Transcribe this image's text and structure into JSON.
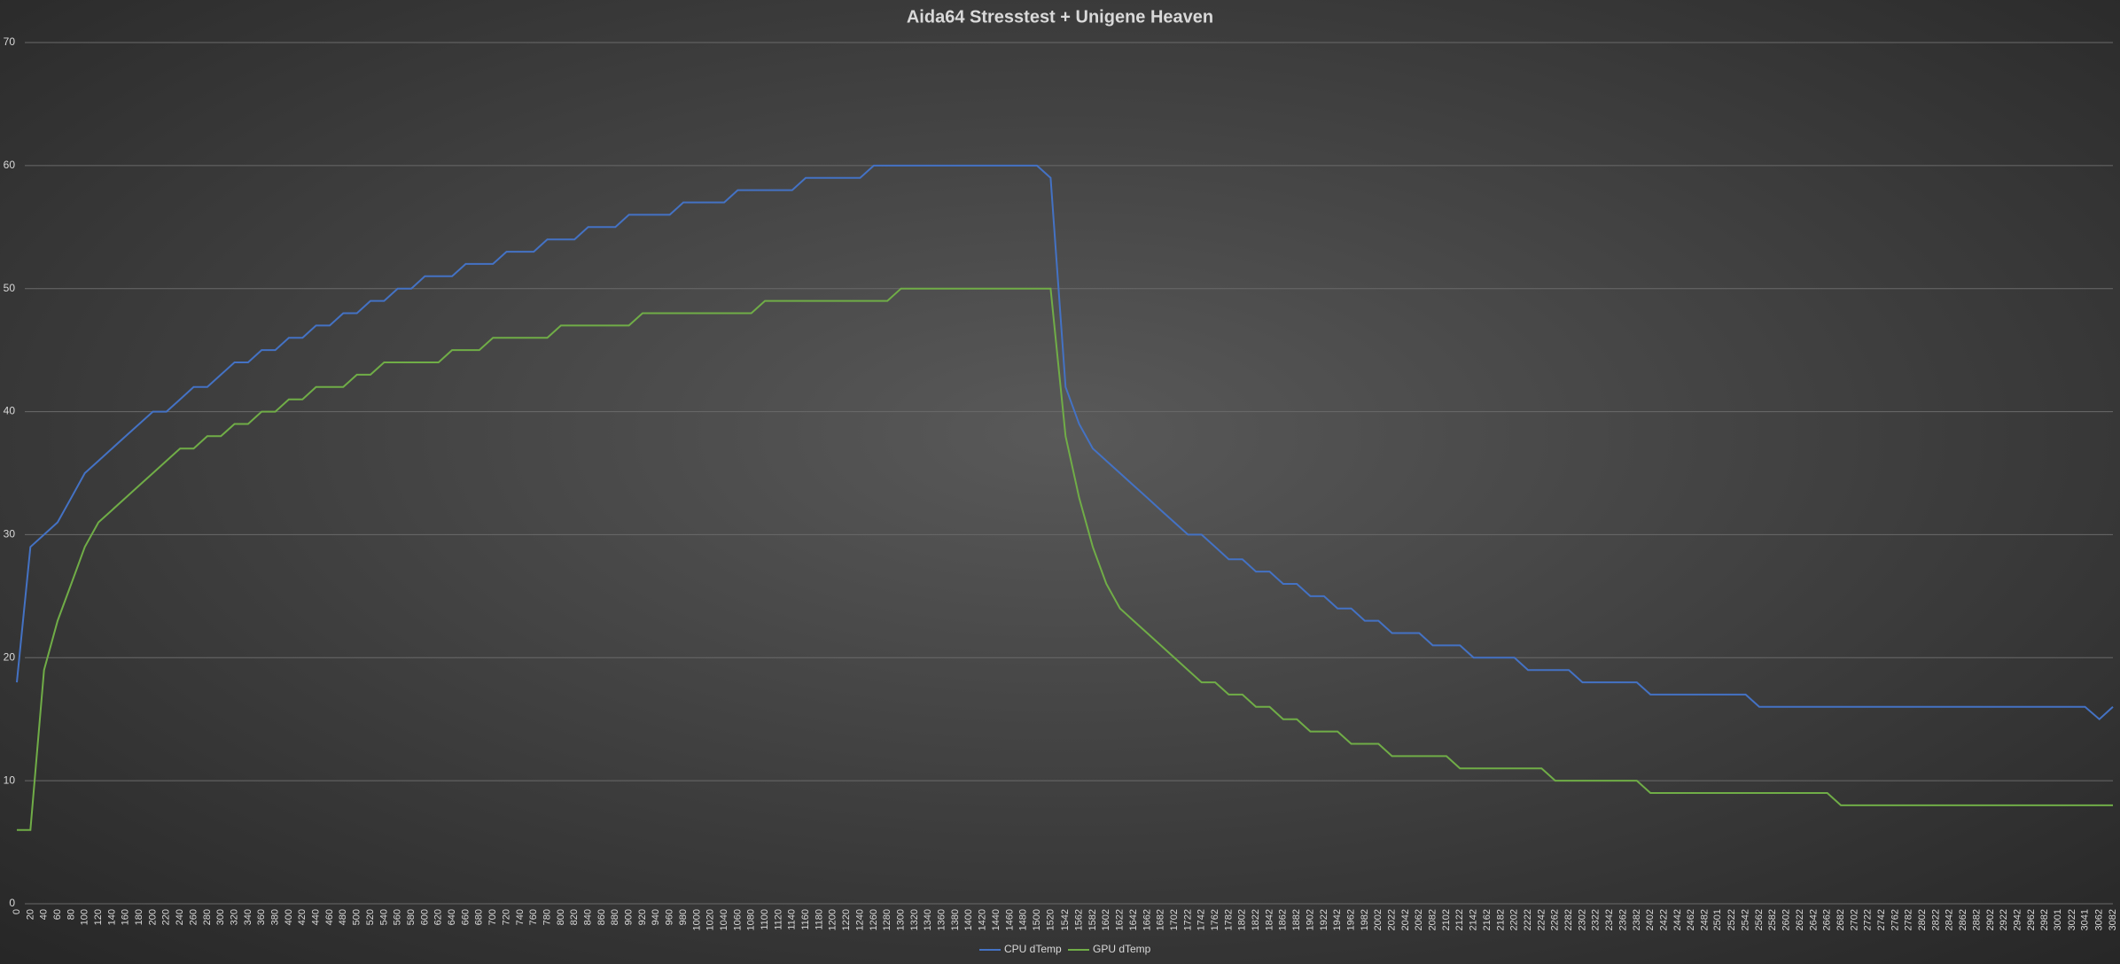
{
  "chart_data": {
    "type": "line",
    "title": "Aida64 Stresstest + Unigene Heaven",
    "x": [
      0,
      20,
      40,
      60,
      80,
      100,
      120,
      140,
      160,
      180,
      200,
      220,
      240,
      260,
      280,
      300,
      320,
      340,
      360,
      380,
      400,
      420,
      440,
      460,
      480,
      500,
      520,
      540,
      560,
      580,
      600,
      620,
      640,
      660,
      680,
      700,
      720,
      740,
      760,
      780,
      800,
      820,
      840,
      860,
      880,
      900,
      920,
      940,
      960,
      980,
      1000,
      1020,
      1040,
      1060,
      1080,
      1100,
      1120,
      1140,
      1160,
      1180,
      1200,
      1220,
      1240,
      1260,
      1280,
      1300,
      1320,
      1340,
      1360,
      1380,
      1400,
      1420,
      1440,
      1460,
      1480,
      1500,
      1520,
      1542,
      1562,
      1582,
      1602,
      1622,
      1642,
      1662,
      1682,
      1702,
      1722,
      1742,
      1762,
      1782,
      1802,
      1822,
      1842,
      1862,
      1882,
      1902,
      1922,
      1942,
      1962,
      1982,
      2002,
      2022,
      2042,
      2062,
      2082,
      2102,
      2122,
      2142,
      2162,
      2182,
      2202,
      2222,
      2242,
      2262,
      2282,
      2302,
      2322,
      2342,
      2362,
      2382,
      2402,
      2422,
      2442,
      2462,
      2482,
      2501,
      2522,
      2542,
      2562,
      2582,
      2602,
      2622,
      2642,
      2662,
      2682,
      2702,
      2722,
      2742,
      2762,
      2782,
      2802,
      2822,
      2842,
      2862,
      2882,
      2902,
      2922,
      2942,
      2962,
      2982,
      3001,
      3022,
      3041,
      3062,
      3082
    ],
    "series": [
      {
        "name": "CPU dTemp",
        "color": "#4472c4",
        "values": [
          18,
          29,
          30,
          31,
          33,
          35,
          36,
          37,
          38,
          39,
          40,
          40,
          41,
          42,
          42,
          43,
          44,
          44,
          45,
          45,
          46,
          46,
          47,
          47,
          48,
          48,
          49,
          49,
          50,
          50,
          51,
          51,
          51,
          52,
          52,
          52,
          53,
          53,
          53,
          54,
          54,
          54,
          55,
          55,
          55,
          56,
          56,
          56,
          56,
          57,
          57,
          57,
          57,
          58,
          58,
          58,
          58,
          58,
          59,
          59,
          59,
          59,
          59,
          60,
          60,
          60,
          60,
          60,
          60,
          60,
          60,
          60,
          60,
          60,
          60,
          60,
          59,
          42,
          39,
          37,
          36,
          35,
          34,
          33,
          32,
          31,
          30,
          30,
          29,
          28,
          28,
          27,
          27,
          26,
          26,
          25,
          25,
          24,
          24,
          23,
          23,
          22,
          22,
          22,
          21,
          21,
          21,
          20,
          20,
          20,
          20,
          19,
          19,
          19,
          19,
          18,
          18,
          18,
          18,
          18,
          17,
          17,
          17,
          17,
          17,
          17,
          17,
          17,
          16,
          16,
          16,
          16,
          16,
          16,
          16,
          16,
          16,
          16,
          16,
          16,
          16,
          16,
          16,
          16,
          16,
          16,
          16,
          16,
          16,
          16,
          16,
          16,
          16,
          15,
          16
        ]
      },
      {
        "name": "GPU dTemp",
        "color": "#70ad47",
        "values": [
          6,
          6,
          19,
          23,
          26,
          29,
          31,
          32,
          33,
          34,
          35,
          36,
          37,
          37,
          38,
          38,
          39,
          39,
          40,
          40,
          41,
          41,
          42,
          42,
          42,
          43,
          43,
          44,
          44,
          44,
          44,
          44,
          45,
          45,
          45,
          46,
          46,
          46,
          46,
          46,
          47,
          47,
          47,
          47,
          47,
          47,
          48,
          48,
          48,
          48,
          48,
          48,
          48,
          48,
          48,
          49,
          49,
          49,
          49,
          49,
          49,
          49,
          49,
          49,
          49,
          50,
          50,
          50,
          50,
          50,
          50,
          50,
          50,
          50,
          50,
          50,
          50,
          38,
          33,
          29,
          26,
          24,
          23,
          22,
          21,
          20,
          19,
          18,
          18,
          17,
          17,
          16,
          16,
          15,
          15,
          14,
          14,
          14,
          13,
          13,
          13,
          12,
          12,
          12,
          12,
          12,
          11,
          11,
          11,
          11,
          11,
          11,
          11,
          10,
          10,
          10,
          10,
          10,
          10,
          10,
          9,
          9,
          9,
          9,
          9,
          9,
          9,
          9,
          9,
          9,
          9,
          9,
          9,
          9,
          8,
          8,
          8,
          8,
          8,
          8,
          8,
          8,
          8,
          8,
          8,
          8,
          8,
          8,
          8,
          8,
          8,
          8,
          8,
          8,
          8
        ]
      }
    ],
    "xlim": [
      0,
      3082
    ],
    "ylim": [
      0,
      70
    ],
    "yticks": [
      0,
      10,
      20,
      30,
      40,
      50,
      60,
      70
    ],
    "grid": true,
    "legend": "bottom"
  }
}
